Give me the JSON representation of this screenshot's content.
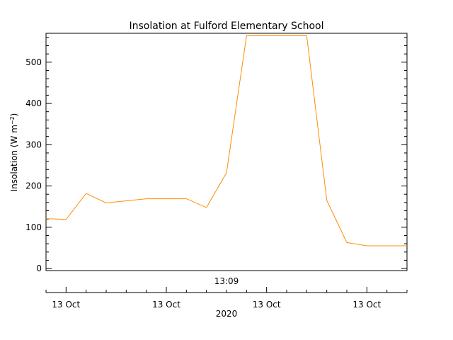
{
  "chart_data": {
    "type": "line",
    "title": "Insolation at Fulford Elementary School",
    "ylabel_main": "Insolation (W m",
    "ylabel_sup": "−2",
    "ylabel_close": ")",
    "xlabel": "",
    "ylim": [
      -5,
      570
    ],
    "yticks": [
      0,
      100,
      200,
      300,
      400,
      500
    ],
    "x_time_label": "13:09",
    "x_tick_labels": [
      "13 Oct",
      "13 Oct",
      "13 Oct",
      "13 Oct"
    ],
    "x_year_label": "2020",
    "x_range_minutes": [
      0,
      18
    ],
    "x_major_minutes": [
      1,
      6,
      11,
      16
    ],
    "series": [
      {
        "color": "#ff8c00",
        "x": [
          0,
          1,
          2,
          3,
          4,
          5,
          6,
          7,
          8,
          9,
          10,
          11,
          12,
          13,
          14,
          15,
          16,
          17,
          18
        ],
        "values": [
          121,
          119,
          182,
          159,
          164,
          169,
          169,
          169,
          148,
          232,
          564,
          564,
          564,
          564,
          165,
          63,
          55,
          55,
          55
        ]
      }
    ]
  }
}
